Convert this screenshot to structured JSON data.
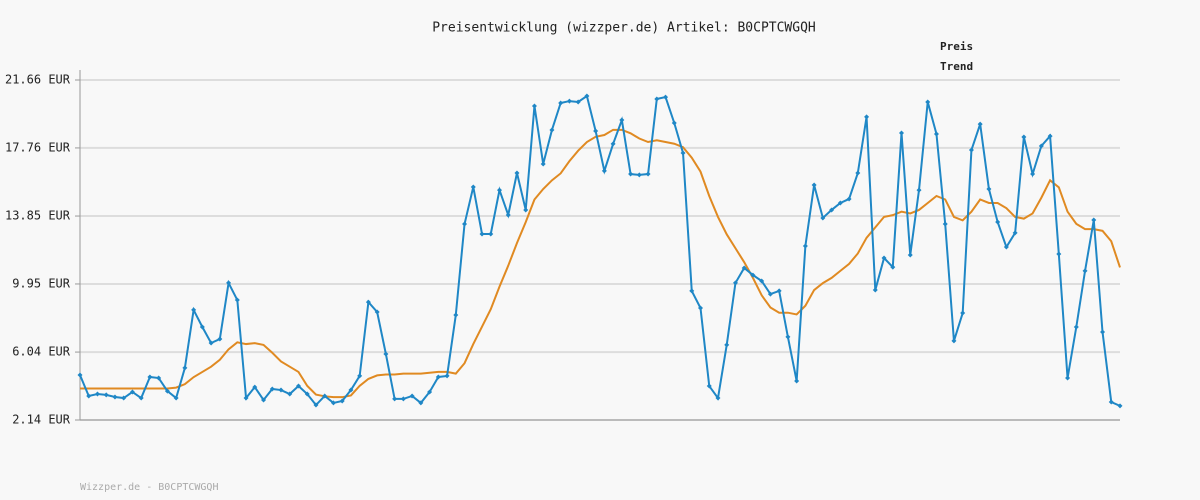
{
  "chart_data": {
    "type": "line",
    "title": "Preisentwicklung (wizzper.de) Artikel: B0CPTCWGQH",
    "footer": "Wizzper.de - B0CPTCWGQH",
    "ylim": [
      2.14,
      21.66
    ],
    "yticks": [
      {
        "value": 2.14,
        "label": "2.14 EUR"
      },
      {
        "value": 6.04,
        "label": "6.04 EUR"
      },
      {
        "value": 9.95,
        "label": "9.95 EUR"
      },
      {
        "value": 13.85,
        "label": "13.85 EUR"
      },
      {
        "value": 17.76,
        "label": "17.76 EUR"
      },
      {
        "value": 21.66,
        "label": "21.66 EUR"
      }
    ],
    "grid": true,
    "series": [
      {
        "name": "Preis",
        "color": "#1f87c6",
        "values": [
          4.72,
          3.52,
          3.63,
          3.58,
          3.46,
          3.4,
          3.75,
          3.4,
          4.61,
          4.55,
          3.8,
          3.4,
          5.13,
          8.46,
          7.48,
          6.56,
          6.79,
          10.01,
          9.03,
          3.4,
          4.03,
          3.29,
          3.92,
          3.86,
          3.63,
          4.09,
          3.63,
          3.0,
          3.52,
          3.12,
          3.23,
          3.86,
          4.67,
          8.91,
          8.34,
          5.93,
          3.35,
          3.35,
          3.52,
          3.12,
          3.75,
          4.61,
          4.67,
          8.17,
          13.39,
          15.52,
          12.82,
          12.82,
          15.34,
          13.91,
          16.32,
          14.2,
          20.17,
          16.84,
          18.79,
          20.34,
          20.45,
          20.4,
          20.74,
          18.73,
          16.44,
          17.99,
          19.36,
          16.26,
          16.21,
          16.26,
          20.57,
          20.68,
          19.19,
          17.47,
          9.55,
          8.57,
          4.09,
          3.4,
          6.45,
          10.01,
          10.87,
          10.46,
          10.12,
          9.37,
          9.55,
          6.91,
          4.38,
          12.13,
          15.63,
          13.74,
          14.2,
          14.6,
          14.83,
          16.32,
          19.54,
          9.6,
          11.44,
          10.92,
          18.62,
          11.61,
          15.34,
          20.4,
          18.56,
          13.39,
          6.68,
          8.28,
          17.64,
          19.13,
          15.4,
          13.51,
          12.07,
          12.88,
          18.39,
          16.26,
          17.87,
          18.44,
          11.67,
          4.55,
          7.48,
          10.7,
          13.62,
          7.19,
          3.17,
          2.95
        ]
      },
      {
        "name": "Trend",
        "color": "#e08a22",
        "values": [
          3.95,
          3.95,
          3.95,
          3.95,
          3.95,
          3.95,
          3.95,
          3.95,
          3.95,
          3.95,
          3.95,
          4.0,
          4.2,
          4.6,
          4.9,
          5.2,
          5.6,
          6.2,
          6.6,
          6.5,
          6.55,
          6.45,
          6.0,
          5.5,
          5.2,
          4.9,
          4.1,
          3.6,
          3.5,
          3.45,
          3.45,
          3.55,
          4.1,
          4.5,
          4.7,
          4.75,
          4.75,
          4.8,
          4.8,
          4.8,
          4.85,
          4.9,
          4.9,
          4.8,
          5.4,
          6.5,
          7.5,
          8.5,
          9.8,
          11.0,
          12.3,
          13.5,
          14.8,
          15.4,
          15.9,
          16.3,
          17.0,
          17.6,
          18.1,
          18.4,
          18.5,
          18.8,
          18.8,
          18.6,
          18.3,
          18.1,
          18.2,
          18.1,
          18.0,
          17.8,
          17.2,
          16.4,
          15.0,
          13.8,
          12.8,
          12.0,
          11.2,
          10.3,
          9.3,
          8.6,
          8.3,
          8.3,
          8.2,
          8.7,
          9.6,
          10.0,
          10.3,
          10.7,
          11.1,
          11.7,
          12.6,
          13.2,
          13.8,
          13.9,
          14.1,
          14.0,
          14.2,
          14.6,
          15.0,
          14.8,
          13.8,
          13.6,
          14.1,
          14.8,
          14.6,
          14.6,
          14.3,
          13.8,
          13.7,
          14.0,
          14.9,
          15.9,
          15.5,
          14.1,
          13.4,
          13.1,
          13.1,
          13.0,
          12.4,
          10.9
        ]
      }
    ]
  }
}
